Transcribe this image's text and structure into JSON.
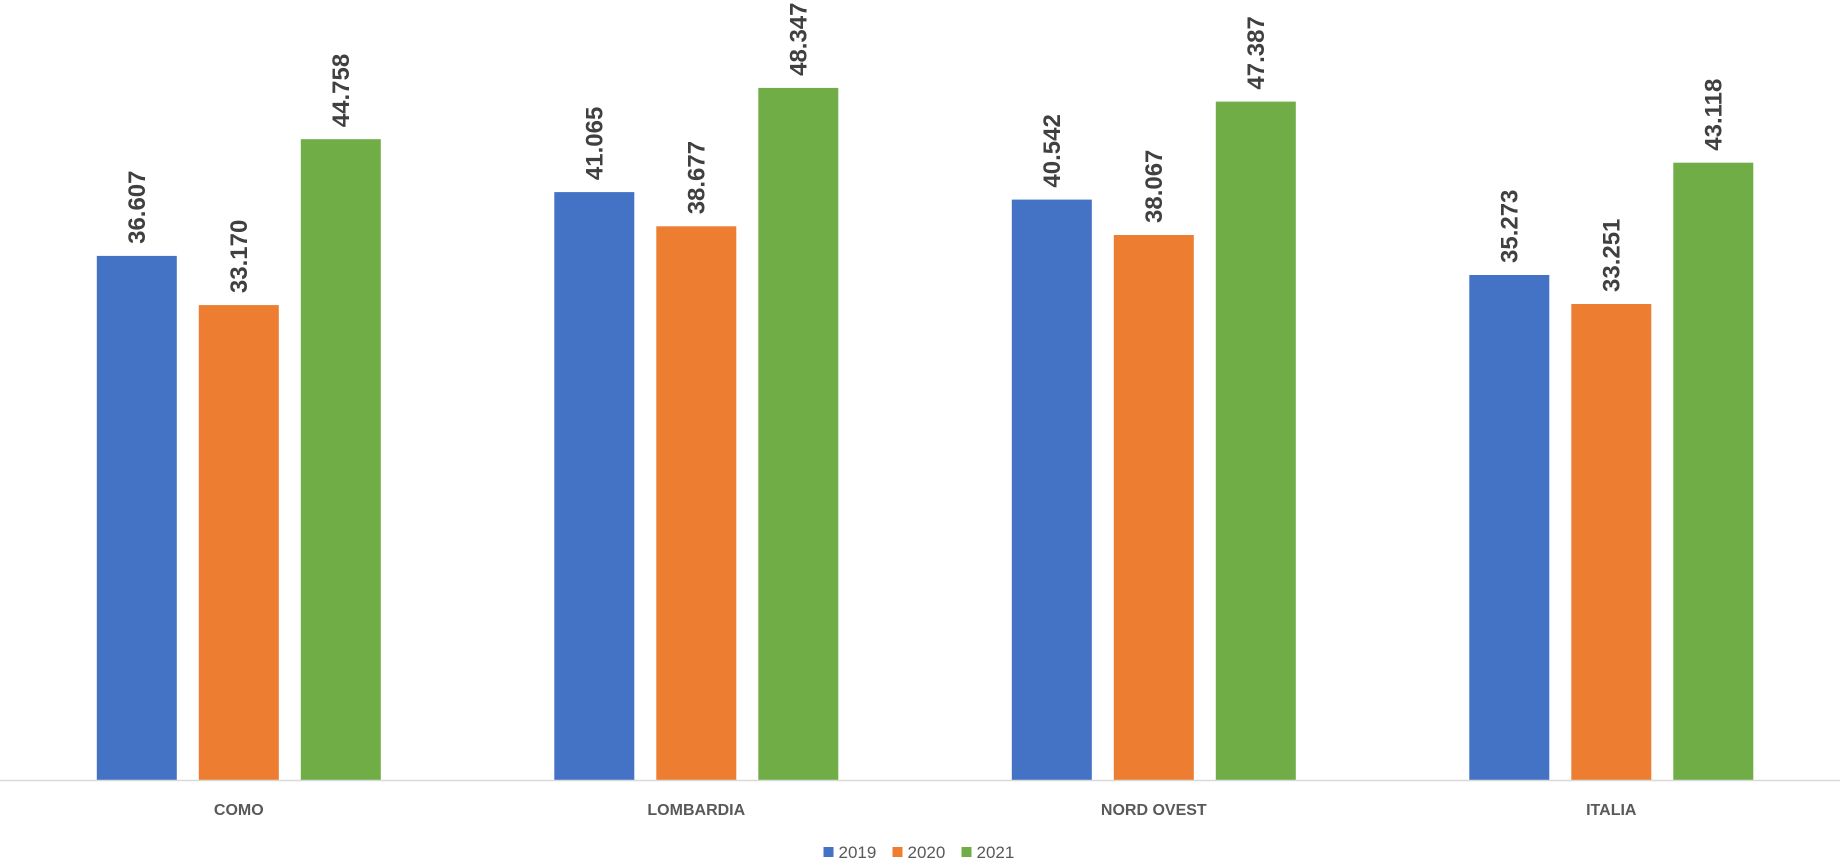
{
  "chart_data": {
    "type": "bar",
    "title": "",
    "xlabel": "",
    "ylabel": "",
    "categories": [
      "COMO",
      "LOMBARDIA",
      "NORD OVEST",
      "ITALIA"
    ],
    "series": [
      {
        "name": "2019",
        "color": "#4472C4",
        "values": [
          36607,
          41065,
          40542,
          35273
        ],
        "labels": [
          "36.607",
          "41.065",
          "40.542",
          "35.273"
        ]
      },
      {
        "name": "2020",
        "color": "#ED7D31",
        "values": [
          33170,
          38677,
          38067,
          33251
        ],
        "labels": [
          "33.170",
          "38.677",
          "38.067",
          "33.251"
        ]
      },
      {
        "name": "2021",
        "color": "#70AD47",
        "values": [
          44758,
          48347,
          47387,
          43118
        ],
        "labels": [
          "44.758",
          "48.347",
          "47.387",
          "43.118"
        ]
      }
    ],
    "ylim": [
      0,
      55000
    ],
    "y_axis_visible": false,
    "grid": false,
    "data_labels": "rotated-vertical",
    "legend_position": "bottom"
  }
}
